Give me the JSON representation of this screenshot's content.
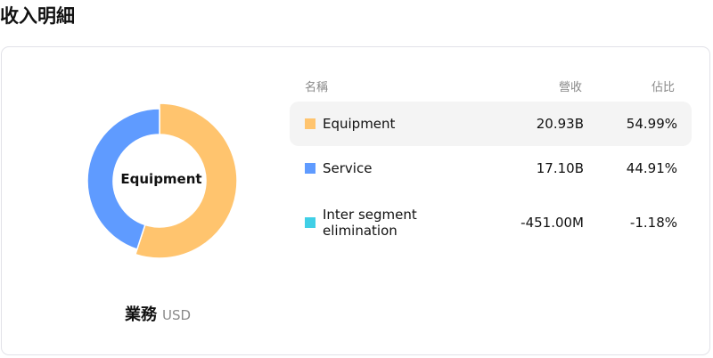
{
  "page_title": "收入明細",
  "chart_data": {
    "type": "pie",
    "center_label": "Equipment",
    "caption": "業務",
    "unit": "USD",
    "columns": [
      "名稱",
      "營收",
      "佔比"
    ],
    "items": [
      {
        "name": "Equipment",
        "revenue_label": "20.93B",
        "revenue": 20930000000,
        "percent_label": "54.99%",
        "percent": 54.99,
        "color": "#FFC46E",
        "highlighted": true
      },
      {
        "name": "Service",
        "revenue_label": "17.10B",
        "revenue": 17100000000,
        "percent_label": "44.91%",
        "percent": 44.91,
        "color": "#5F9BFF",
        "highlighted": false
      },
      {
        "name": "Inter segment elimination",
        "revenue_label": "-451.00M",
        "revenue": -451000000,
        "percent_label": "-1.18%",
        "percent": -1.18,
        "color": "#40CFE6",
        "highlighted": false
      }
    ]
  }
}
